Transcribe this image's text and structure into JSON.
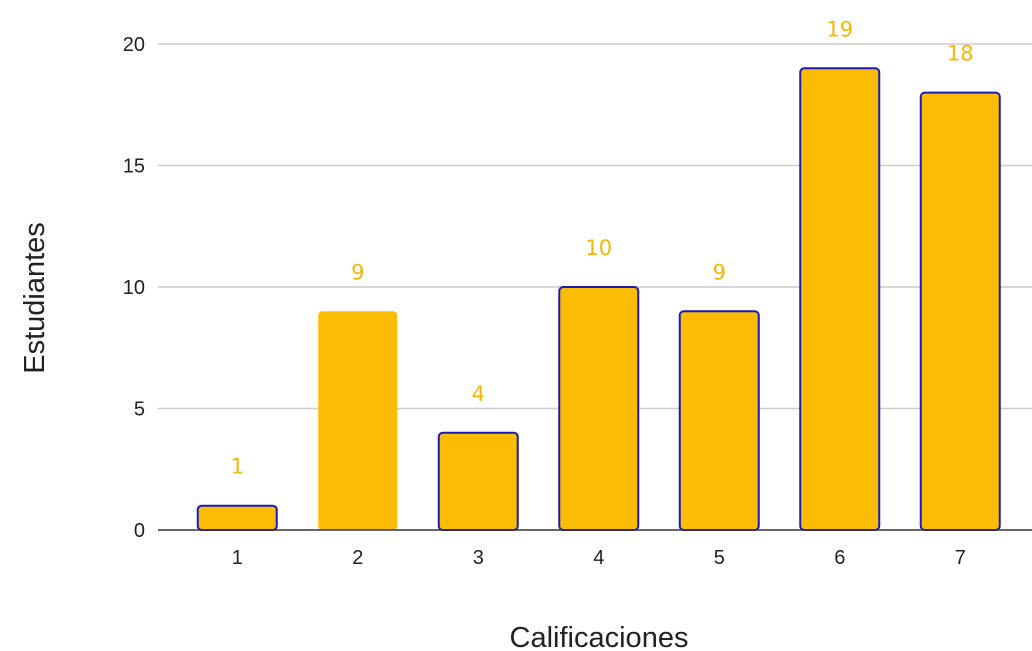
{
  "chart_data": {
    "type": "bar",
    "categories": [
      "1",
      "2",
      "3",
      "4",
      "5",
      "6",
      "7"
    ],
    "values": [
      1,
      9,
      4,
      10,
      9,
      19,
      18
    ],
    "data_labels": [
      "1",
      "9",
      "4",
      "10",
      "9",
      "19",
      "18"
    ],
    "outlined": [
      true,
      false,
      true,
      true,
      true,
      true,
      true
    ],
    "title": "",
    "xlabel": "Calificaciones",
    "ylabel": "Estudiantes",
    "ylim": [
      0,
      20
    ],
    "yticks": [
      "0",
      "5",
      "10",
      "15",
      "20"
    ],
    "grid": true,
    "legend": "none",
    "colors": {
      "bar_fill": "#fbbc04",
      "bar_outline": "#1a1ab8",
      "label": "#f5b800"
    }
  }
}
